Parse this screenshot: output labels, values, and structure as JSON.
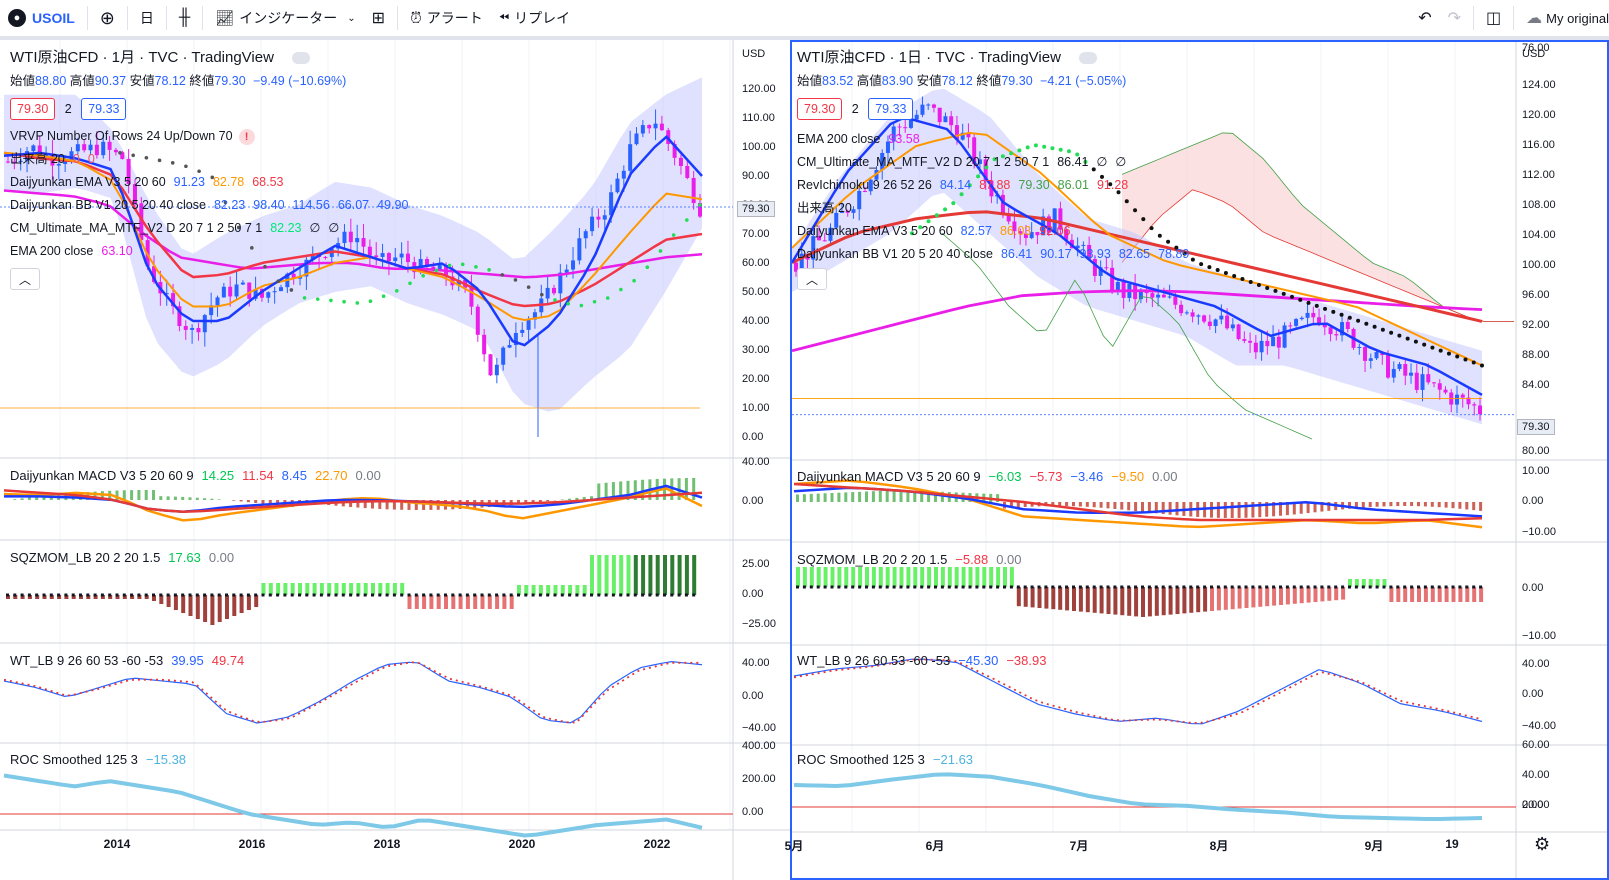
{
  "toolbar": {
    "symbol": "USOIL",
    "interval": "日",
    "indicators": "インジケーター",
    "alert": "アラート",
    "replay": "リプレイ",
    "layout_name": "My original"
  },
  "left": {
    "title": "WTI原油CFD · 1月 · TVC · TradingView",
    "ohlc": {
      "o_label": "始値",
      "o": "88.80",
      "h_label": "高値",
      "h": "90.37",
      "l_label": "安値",
      "l": "78.12",
      "c_label": "終値",
      "c": "79.30",
      "chg": "−9.49 (−10.69%)"
    },
    "bid": "79.30",
    "spread": "2",
    "ask": "79.33",
    "indicators": [
      {
        "name": "VRVP Number Of Rows 24 Up/Down 70",
        "vals": [],
        "badge": "!"
      },
      {
        "name": "出来高 20",
        "vals": [
          {
            "t": "0",
            "c": "#f7525f"
          },
          {
            "t": "0",
            "c": "#f7525f"
          }
        ]
      },
      {
        "name": "Daijyunkan EMA V3 5 20 60",
        "vals": [
          {
            "t": "91.23",
            "c": "#2962ff"
          },
          {
            "t": "82.78",
            "c": "#ff9800"
          },
          {
            "t": "68.53",
            "c": "#f23645"
          }
        ]
      },
      {
        "name": "Daijyunkan BB V1 20 5 20 40 close",
        "vals": [
          {
            "t": "82.23",
            "c": "#2962ff"
          },
          {
            "t": "98.40",
            "c": "#2962ff"
          },
          {
            "t": "114.56",
            "c": "#2962ff"
          },
          {
            "t": "66.07",
            "c": "#2962ff"
          },
          {
            "t": "49.90",
            "c": "#2962ff"
          }
        ]
      },
      {
        "name": "CM_Ultimate_MA_MTF_V2 D 20 7 1 2 50 7 1",
        "vals": [
          {
            "t": "82.23",
            "c": "#00e676"
          },
          {
            "t": "∅",
            "c": "#131722"
          },
          {
            "t": "∅",
            "c": "#131722"
          }
        ]
      },
      {
        "name": "EMA 200 close",
        "vals": [
          {
            "t": "63.10",
            "c": "#e91ee9"
          }
        ]
      }
    ],
    "yaxis_main": [
      "USD",
      "120.00",
      "110.00",
      "100.00",
      "90.00",
      "80.00",
      "70.00",
      "60.00",
      "50.00",
      "40.00",
      "30.00",
      "20.00",
      "10.00",
      "0.00"
    ],
    "last_price": "79.30",
    "macd": {
      "name": "Daijyunkan MACD V3 5 20 60 9",
      "vals": [
        {
          "t": "14.25",
          "c": "#00c853"
        },
        {
          "t": "11.54",
          "c": "#f23645"
        },
        {
          "t": "8.45",
          "c": "#2962ff"
        },
        {
          "t": "22.70",
          "c": "#ff9800"
        },
        {
          "t": "0.00",
          "c": "#787b86"
        }
      ],
      "axis": [
        "40.00",
        "0.00"
      ]
    },
    "sqz": {
      "name": "SQZMOM_LB 20 2 20 1.5",
      "vals": [
        {
          "t": "17.63",
          "c": "#00c853"
        },
        {
          "t": "0.00",
          "c": "#787b86"
        }
      ],
      "axis": [
        "25.00",
        "0.00",
        "−25.00"
      ]
    },
    "wt": {
      "name": "WT_LB 9 26 60 53 -60 -53",
      "vals": [
        {
          "t": "39.95",
          "c": "#2962ff"
        },
        {
          "t": "49.74",
          "c": "#f23645"
        }
      ],
      "axis": [
        "40.00",
        "0.00",
        "−40.00"
      ]
    },
    "roc": {
      "name": "ROC Smoothed 125 3",
      "vals": [
        {
          "t": "−15.38",
          "c": "#4fb3e0"
        }
      ],
      "axis": [
        "400.00",
        "200.00",
        "0.00"
      ]
    },
    "xaxis": [
      "2014",
      "2016",
      "2018",
      "2020",
      "2022"
    ]
  },
  "right": {
    "title": "WTI原油CFD · 1日 · TVC · TradingView",
    "ohlc": {
      "o_label": "始値",
      "o": "83.52",
      "h_label": "高値",
      "h": "83.90",
      "l_label": "安値",
      "l": "78.12",
      "c_label": "終値",
      "c": "79.30",
      "chg": "−4.21 (−5.05%)"
    },
    "bid": "79.30",
    "spread": "2",
    "ask": "79.33",
    "indicators": [
      {
        "name": "EMA 200 close",
        "vals": [
          {
            "t": "93.58",
            "c": "#e91ee9"
          }
        ]
      },
      {
        "name": "CM_Ultimate_MA_MTF_V2 D 20 7 1 2 50 7 1",
        "vals": [
          {
            "t": "86.41",
            "c": "#131722"
          },
          {
            "t": "∅",
            "c": "#131722"
          },
          {
            "t": "∅",
            "c": "#131722"
          }
        ]
      },
      {
        "name": "RevIchimoku 9 26 52 26",
        "vals": [
          {
            "t": "84.14",
            "c": "#2962ff"
          },
          {
            "t": "87.88",
            "c": "#f23645"
          },
          {
            "t": "79.30",
            "c": "#43a047"
          },
          {
            "t": "86.01",
            "c": "#43a047"
          },
          {
            "t": "91.28",
            "c": "#f23645"
          }
        ]
      },
      {
        "name": "出来高 20",
        "vals": []
      },
      {
        "name": "Daijyunkan EMA V3 5 20 60",
        "vals": [
          {
            "t": "82.57",
            "c": "#2962ff"
          },
          {
            "t": "86.03",
            "c": "#ff9800"
          },
          {
            "t": "92.06",
            "c": "#f23645"
          }
        ]
      },
      {
        "name": "Daijyunkan BB V1 20 5 20 40 close",
        "vals": [
          {
            "t": "86.41",
            "c": "#2962ff"
          },
          {
            "t": "90.17",
            "c": "#2962ff"
          },
          {
            "t": "93.93",
            "c": "#2962ff"
          },
          {
            "t": "82.65",
            "c": "#2962ff"
          },
          {
            "t": "78.89",
            "c": "#2962ff"
          }
        ]
      }
    ],
    "yaxis_main": [
      "USD",
      "124.00",
      "120.00",
      "116.00",
      "112.00",
      "108.00",
      "104.00",
      "100.00",
      "96.00",
      "92.00",
      "88.00",
      "84.00",
      "80.00",
      "76.00"
    ],
    "last_price": "79.30",
    "macd": {
      "name": "Daijyunkan MACD V3 5 20 60 9",
      "vals": [
        {
          "t": "−6.03",
          "c": "#00c853"
        },
        {
          "t": "−5.73",
          "c": "#f23645"
        },
        {
          "t": "−3.46",
          "c": "#2962ff"
        },
        {
          "t": "−9.50",
          "c": "#ff9800"
        },
        {
          "t": "0.00",
          "c": "#787b86"
        }
      ],
      "axis": [
        "10.00",
        "0.00",
        "−10.00"
      ]
    },
    "sqz": {
      "name": "SQZMOM_LB 20 2 20 1.5",
      "vals": [
        {
          "t": "−5.88",
          "c": "#f23645"
        },
        {
          "t": "0.00",
          "c": "#787b86"
        }
      ],
      "axis": [
        "0.00",
        "−10.00"
      ]
    },
    "wt": {
      "name": "WT_LB 9 26 60 53 -60 -53",
      "vals": [
        {
          "t": "−45.30",
          "c": "#2962ff"
        },
        {
          "t": "−38.93",
          "c": "#f23645"
        }
      ],
      "axis": [
        "40.00",
        "0.00",
        "−40.00"
      ]
    },
    "roc": {
      "name": "ROC Smoothed 125 3",
      "vals": [
        {
          "t": "−21.63",
          "c": "#4fb3e0"
        }
      ],
      "axis": [
        "60.00",
        "40.00",
        "20.00",
        "0.00"
      ]
    },
    "xaxis": [
      "5月",
      "6月",
      "7月",
      "8月",
      "9月",
      "19"
    ]
  },
  "chart_data": [
    {
      "type": "line",
      "title": "WTI原油CFD · 1月 · TVC · TradingView",
      "x": [
        "2014",
        "2016",
        "2018",
        "2020",
        "2022"
      ],
      "series": [
        {
          "name": "close",
          "values": [
            100,
            45,
            65,
            20,
            79.3
          ]
        },
        {
          "name": "EMA 200 close",
          "values": [
            85,
            60,
            58,
            57,
            63.1
          ]
        }
      ],
      "ylim": [
        0,
        125
      ]
    },
    {
      "type": "line",
      "title": "WTI原油CFD · 1日 · TVC · TradingView",
      "x": [
        "5月",
        "6月",
        "7月",
        "8月",
        "9月",
        "19"
      ],
      "series": [
        {
          "name": "close",
          "values": [
            100,
            120,
            104,
            94,
            90,
            79.3
          ]
        },
        {
          "name": "EMA 200 close",
          "values": [
            88,
            93,
            96,
            96,
            95,
            93.58
          ]
        }
      ],
      "ylim": [
        75,
        126
      ]
    }
  ]
}
